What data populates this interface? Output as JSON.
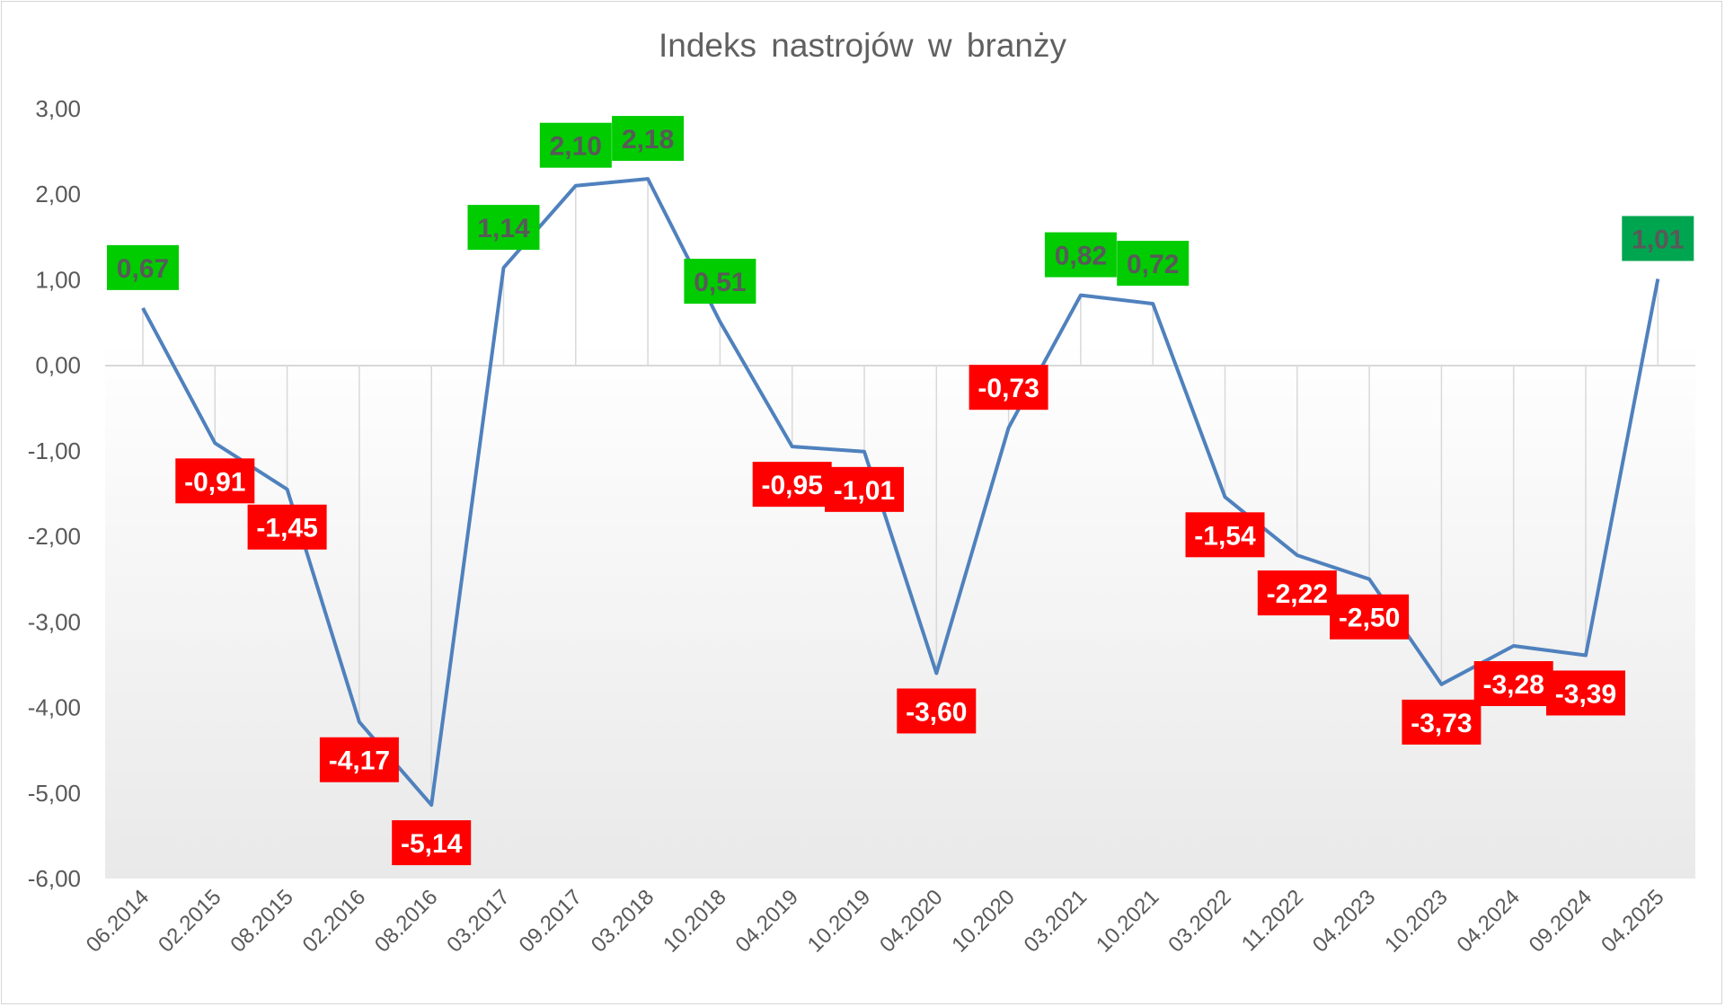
{
  "chart_data": {
    "type": "line",
    "title": "Indeks nastrojów w branży",
    "xlabel": "",
    "ylabel": "",
    "ylim": [
      -6,
      3
    ],
    "yticks": [
      "3,00",
      "2,00",
      "1,00",
      "0,00",
      "-1,00",
      "-2,00",
      "-3,00",
      "-4,00",
      "-5,00",
      "-6,00"
    ],
    "grid": "vertical drop lines",
    "legend": "none",
    "categories": [
      "06.2014",
      "02.2015",
      "08.2015",
      "02.2016",
      "08.2016",
      "03.2017",
      "09.2017",
      "03.2018",
      "10.2018",
      "04.2019",
      "10.2019",
      "04.2020",
      "10.2020",
      "03.2021",
      "10.2021",
      "03.2022",
      "11.2022",
      "04.2023",
      "10.2023",
      "04.2024",
      "09.2024",
      "04.2025"
    ],
    "values": [
      0.67,
      -0.91,
      -1.45,
      -4.17,
      -5.14,
      1.14,
      2.1,
      2.18,
      0.51,
      -0.95,
      -1.01,
      -3.6,
      -0.73,
      0.82,
      0.72,
      -1.54,
      -2.22,
      -2.5,
      -3.73,
      -3.28,
      -3.39,
      1.01
    ],
    "data_labels": [
      "0,67",
      "-0,91",
      "-1,45",
      "-4,17",
      "-5,14",
      "1,14",
      "2,10",
      "2,18",
      "0,51",
      "-0,95",
      "-1,01",
      "-3,60",
      "-0,73",
      "0,82",
      "0,72",
      "-1,54",
      "-2,22",
      "-2,50",
      "-3,73",
      "-3,28",
      "-3,39",
      "1,01"
    ],
    "colors": {
      "line": "#4f81bd",
      "positive_label_bg": "#00cc00",
      "negative_label_bg": "#ff0000",
      "last_label_bg": "#00a550",
      "positive_label_text": "#595959",
      "negative_label_text": "#ffffff",
      "axis_text": "#595959",
      "zero_line": "#d9d9d9",
      "drop_line": "#d9d9d9"
    }
  }
}
